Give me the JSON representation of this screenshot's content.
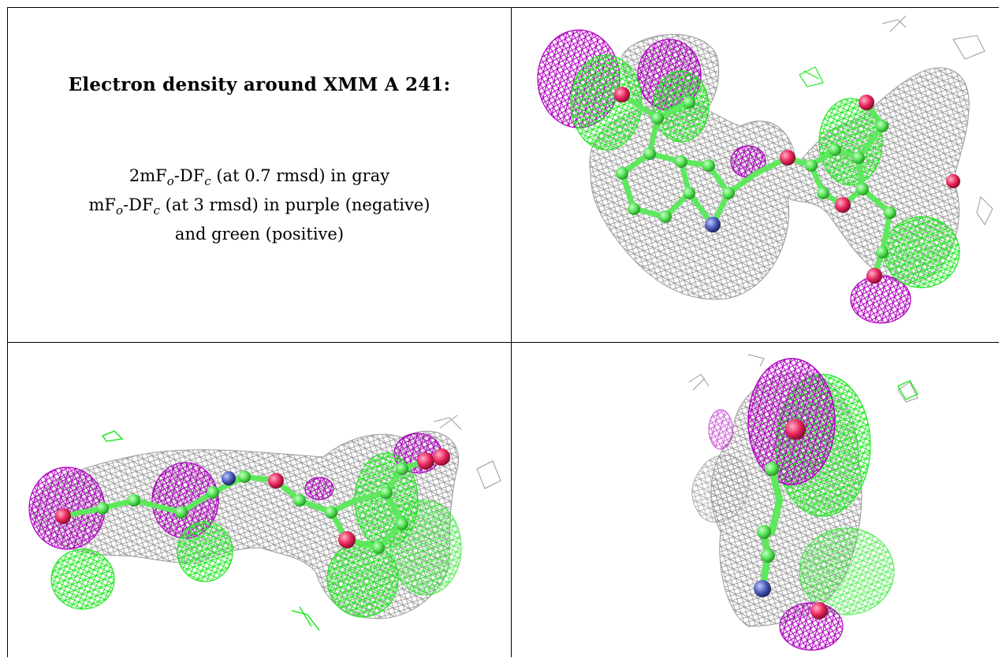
{
  "figure": {
    "title": "Electron density around XMM A 241:",
    "legend": [
      {
        "prefix": "2mF",
        "sub1": "o",
        "mid": "-DF",
        "sub2": "c",
        "suffix": " (at 0.7 rmsd) in gray"
      },
      {
        "prefix": "mF",
        "sub1": "o",
        "mid": "-DF",
        "sub2": "c",
        "suffix": " (at 3 rmsd) in purple (negative)"
      },
      {
        "text": "and green (positive)"
      }
    ]
  },
  "colors": {
    "mesh_gray": "#9a9a9a",
    "mesh_purple": "#b000c0",
    "mesh_green": "#22e822",
    "model_carbon": "#5ee85e",
    "oxygen": "#e8245a",
    "nitrogen": "#4a5ab8"
  },
  "panels": [
    {
      "name": "view-top-right",
      "depicts": "density-render"
    },
    {
      "name": "view-bottom-left",
      "depicts": "density-render"
    },
    {
      "name": "view-bottom-right",
      "depicts": "density-render"
    }
  ]
}
